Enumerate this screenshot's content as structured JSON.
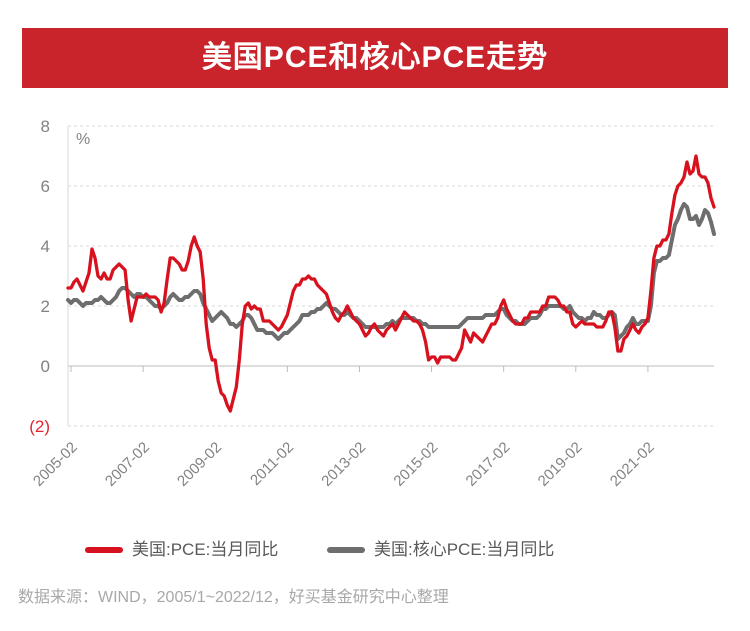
{
  "header": {
    "title": "美国PCE和核心PCE走势"
  },
  "footer": {
    "source_text": "数据来源：WIND，2005/1~2022/12，好买基金研究中心整理"
  },
  "colors": {
    "banner_red": "#c9242b",
    "line_red": "#d8111f",
    "line_gray": "#6e6e6e",
    "negative_tick_red": "#e02430",
    "axis_text_gray": "#828282",
    "grid_gray": "#dadada",
    "axis_line_gray": "#bdbdbd",
    "legend_text": "#595959",
    "source_text": "#a8a8a8"
  },
  "chart_data": {
    "type": "line",
    "title": "美国PCE和核心PCE走势",
    "unit_label": "%",
    "x_start": "2005-01",
    "x_end": "2022-12",
    "x_frequency": "monthly",
    "x_tick_labels": [
      "2005-02",
      "2007-02",
      "2009-02",
      "2011-02",
      "2013-02",
      "2015-02",
      "2017-02",
      "2019-02",
      "2021-02"
    ],
    "x_tick_month_indices": [
      1,
      25,
      49,
      73,
      97,
      121,
      145,
      169,
      193
    ],
    "ylim": [
      -2,
      8
    ],
    "y_ticks": [
      8,
      6,
      4,
      2,
      0,
      -2
    ],
    "y_tick_labels": [
      "8",
      "6",
      "4",
      "2",
      "0",
      "(2)"
    ],
    "grid": "horizontal-dashed",
    "legend_position": "bottom",
    "series": [
      {
        "name": "美国:PCE:当月同比",
        "color": "#d8111f",
        "values": [
          2.6,
          2.6,
          2.8,
          2.9,
          2.7,
          2.5,
          2.8,
          3.1,
          3.9,
          3.6,
          3.0,
          2.9,
          3.1,
          2.9,
          2.9,
          3.2,
          3.3,
          3.4,
          3.3,
          3.2,
          2.2,
          1.5,
          1.9,
          2.3,
          2.3,
          2.3,
          2.4,
          2.3,
          2.3,
          2.3,
          2.2,
          1.8,
          2.1,
          2.9,
          3.6,
          3.6,
          3.5,
          3.4,
          3.2,
          3.2,
          3.5,
          4.0,
          4.3,
          4.0,
          3.8,
          2.9,
          1.4,
          0.6,
          0.2,
          0.2,
          -0.5,
          -0.9,
          -1.0,
          -1.3,
          -1.5,
          -1.1,
          -0.7,
          0.2,
          1.4,
          2.0,
          2.1,
          1.9,
          2.0,
          1.9,
          1.9,
          1.5,
          1.5,
          1.5,
          1.4,
          1.3,
          1.2,
          1.3,
          1.5,
          1.7,
          2.1,
          2.5,
          2.7,
          2.7,
          2.9,
          2.9,
          3.0,
          2.9,
          2.9,
          2.7,
          2.6,
          2.5,
          2.4,
          2.1,
          1.8,
          1.6,
          1.5,
          1.7,
          1.8,
          2.0,
          1.8,
          1.6,
          1.5,
          1.4,
          1.2,
          1.0,
          1.1,
          1.3,
          1.4,
          1.2,
          1.1,
          1.0,
          1.2,
          1.3,
          1.4,
          1.2,
          1.4,
          1.6,
          1.8,
          1.7,
          1.6,
          1.5,
          1.5,
          1.4,
          1.2,
          0.8,
          0.2,
          0.3,
          0.3,
          0.1,
          0.3,
          0.3,
          0.3,
          0.3,
          0.2,
          0.2,
          0.4,
          0.6,
          1.2,
          1.0,
          0.8,
          1.1,
          1.0,
          0.9,
          0.8,
          1.0,
          1.2,
          1.4,
          1.4,
          1.6,
          2.0,
          2.2,
          1.9,
          1.7,
          1.5,
          1.4,
          1.4,
          1.4,
          1.6,
          1.6,
          1.8,
          1.8,
          1.8,
          1.8,
          2.0,
          2.0,
          2.3,
          2.3,
          2.3,
          2.2,
          2.0,
          2.0,
          1.8,
          1.8,
          1.4,
          1.3,
          1.4,
          1.5,
          1.4,
          1.4,
          1.4,
          1.4,
          1.3,
          1.3,
          1.3,
          1.5,
          1.8,
          1.8,
          1.3,
          0.5,
          0.5,
          0.9,
          1.0,
          1.2,
          1.4,
          1.2,
          1.1,
          1.3,
          1.4,
          1.6,
          2.5,
          3.6,
          4.0,
          4.0,
          4.2,
          4.2,
          4.4,
          5.1,
          5.7,
          6.0,
          6.1,
          6.3,
          6.8,
          6.4,
          6.5,
          7.0,
          6.4,
          6.3,
          6.3,
          6.1,
          5.6,
          5.3
        ]
      },
      {
        "name": "美国:核心PCE:当月同比",
        "color": "#6e6e6e",
        "values": [
          2.2,
          2.1,
          2.2,
          2.2,
          2.1,
          2.0,
          2.1,
          2.1,
          2.1,
          2.2,
          2.2,
          2.3,
          2.2,
          2.1,
          2.1,
          2.2,
          2.3,
          2.5,
          2.6,
          2.6,
          2.5,
          2.4,
          2.3,
          2.4,
          2.4,
          2.3,
          2.3,
          2.2,
          2.1,
          2.0,
          2.0,
          1.9,
          2.0,
          2.1,
          2.3,
          2.4,
          2.3,
          2.2,
          2.2,
          2.3,
          2.3,
          2.4,
          2.5,
          2.5,
          2.4,
          2.1,
          1.9,
          1.7,
          1.5,
          1.6,
          1.7,
          1.8,
          1.7,
          1.6,
          1.4,
          1.4,
          1.3,
          1.4,
          1.5,
          1.7,
          1.7,
          1.6,
          1.4,
          1.2,
          1.2,
          1.2,
          1.1,
          1.1,
          1.1,
          1.0,
          0.9,
          1.0,
          1.1,
          1.1,
          1.2,
          1.3,
          1.4,
          1.5,
          1.7,
          1.7,
          1.7,
          1.8,
          1.8,
          1.9,
          1.9,
          2.0,
          2.1,
          2.0,
          1.9,
          1.9,
          1.8,
          1.7,
          1.7,
          1.8,
          1.7,
          1.6,
          1.6,
          1.5,
          1.4,
          1.3,
          1.3,
          1.3,
          1.3,
          1.3,
          1.3,
          1.3,
          1.4,
          1.4,
          1.5,
          1.4,
          1.5,
          1.6,
          1.6,
          1.6,
          1.6,
          1.6,
          1.5,
          1.5,
          1.4,
          1.4,
          1.3,
          1.3,
          1.3,
          1.3,
          1.3,
          1.3,
          1.3,
          1.3,
          1.3,
          1.3,
          1.3,
          1.4,
          1.5,
          1.6,
          1.6,
          1.6,
          1.6,
          1.6,
          1.6,
          1.7,
          1.7,
          1.7,
          1.7,
          1.8,
          1.9,
          1.9,
          1.7,
          1.6,
          1.5,
          1.5,
          1.4,
          1.4,
          1.4,
          1.5,
          1.6,
          1.6,
          1.6,
          1.7,
          1.9,
          1.9,
          2.0,
          2.0,
          2.0,
          2.0,
          2.0,
          1.9,
          1.9,
          2.0,
          1.8,
          1.7,
          1.6,
          1.6,
          1.5,
          1.6,
          1.6,
          1.8,
          1.7,
          1.7,
          1.6,
          1.6,
          1.7,
          1.8,
          1.7,
          0.9,
          1.0,
          1.1,
          1.3,
          1.4,
          1.6,
          1.4,
          1.4,
          1.5,
          1.5,
          1.5,
          2.0,
          3.1,
          3.5,
          3.5,
          3.6,
          3.6,
          3.7,
          4.2,
          4.7,
          4.9,
          5.2,
          5.4,
          5.3,
          4.9,
          4.9,
          5.0,
          4.7,
          4.9,
          5.2,
          5.1,
          4.8,
          4.4
        ]
      }
    ]
  }
}
